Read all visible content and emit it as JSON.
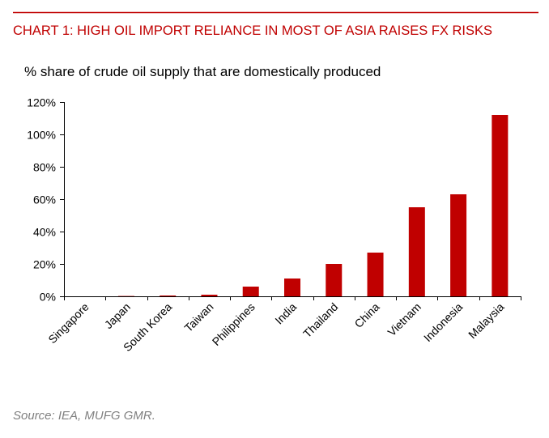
{
  "colors": {
    "accent": "#c00000",
    "bar": "#c00000",
    "axis": "#000000",
    "source": "#808080"
  },
  "chart_data": {
    "type": "bar",
    "title": "CHART 1: HIGH OIL IMPORT RELIANCE IN MOST OF ASIA RAISES FX RISKS",
    "subtitle": "% share of crude oil supply that are domestically produced",
    "xlabel": "",
    "ylabel": "",
    "categories": [
      "Singapore",
      "Japan",
      "South Korea",
      "Taiwan",
      "Philippines",
      "India",
      "Thailand",
      "China",
      "Vietnam",
      "Indonesia",
      "Malaysia"
    ],
    "values": [
      0,
      0.2,
      0.5,
      1,
      6,
      11,
      20,
      27,
      55,
      63,
      112
    ],
    "ylim": [
      0,
      120
    ],
    "yticks": [
      0,
      20,
      40,
      60,
      80,
      100,
      120
    ],
    "ytick_labels": [
      "0%",
      "20%",
      "40%",
      "60%",
      "80%",
      "100%",
      "120%"
    ],
    "grid": false,
    "legend": "none"
  },
  "footer": {
    "source": "Source: IEA, MUFG GMR."
  }
}
